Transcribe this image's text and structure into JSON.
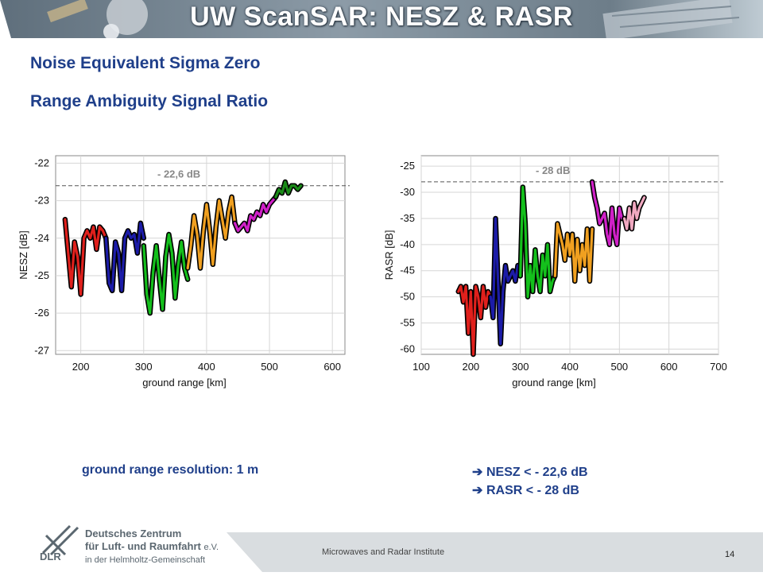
{
  "slide": {
    "title": "UW ScanSAR: NESZ & RASR",
    "headings": [
      "Noise Equivalent Sigma Zero",
      "Range Ambiguity Signal Ratio"
    ],
    "caption": "ground range resolution: 1 m",
    "bullets": [
      "NESZ < - 22,6 dB",
      "RASR < - 28 dB"
    ],
    "bullet_icon": "right-arrow-icon",
    "footer_institute": "Microwaves and Radar Institute",
    "page_number": "14",
    "logo": {
      "abbr": "DLR",
      "line1": "Deutsches Zentrum",
      "line2": "für Luft- und Raumfahrt",
      "line2_suffix": "e.V.",
      "line3": "in der Helmholtz-Gemeinschaft"
    },
    "colors": {
      "title_text": "#ffffff",
      "heading_text": "#1f3f8a",
      "banner": "#6b7c8a"
    }
  },
  "chart_data": [
    {
      "type": "line",
      "xlabel": "ground range [km]",
      "ylabel": "NESZ [dB]",
      "xlim": [
        160,
        620
      ],
      "ylim": [
        -27.1,
        -21.8
      ],
      "xticks": [
        200,
        300,
        400,
        500,
        600
      ],
      "yticks": [
        -22,
        -23,
        -24,
        -25,
        -26,
        -27
      ],
      "grid": true,
      "threshold": {
        "value": -22.6,
        "label": "- 22,6 dB"
      },
      "series": [
        {
          "color": "#e0201c",
          "x": [
            175,
            180,
            185,
            190,
            195,
            200,
            205,
            210,
            215,
            220,
            225,
            230,
            235,
            240
          ],
          "y": [
            -23.5,
            -24.4,
            -25.3,
            -24.1,
            -24.5,
            -25.5,
            -24.0,
            -23.8,
            -24.0,
            -23.7,
            -24.3,
            -23.7,
            -23.8,
            -24.0
          ]
        },
        {
          "color": "#1c1ca8",
          "x": [
            240,
            245,
            250,
            255,
            260,
            265,
            270,
            275,
            280,
            285,
            290,
            295,
            300
          ],
          "y": [
            -24.0,
            -25.2,
            -25.4,
            -24.1,
            -24.4,
            -25.4,
            -24.0,
            -23.8,
            -24.0,
            -23.9,
            -24.4,
            -23.6,
            -24.0
          ]
        },
        {
          "color": "#14c01c",
          "x": [
            300,
            305,
            310,
            315,
            320,
            325,
            330,
            335,
            340,
            345,
            350,
            355,
            360,
            365,
            370
          ],
          "y": [
            -24.2,
            -25.5,
            -26.0,
            -24.9,
            -24.2,
            -25.1,
            -25.9,
            -24.5,
            -23.9,
            -24.4,
            -25.6,
            -24.7,
            -24.1,
            -24.8,
            -25.1
          ]
        },
        {
          "color": "#f0a020",
          "x": [
            370,
            375,
            380,
            385,
            390,
            395,
            400,
            405,
            410,
            415,
            420,
            425,
            430,
            435,
            440,
            445
          ],
          "y": [
            -24.8,
            -24.2,
            -23.4,
            -23.9,
            -24.8,
            -23.8,
            -23.1,
            -23.8,
            -24.7,
            -23.7,
            -23.0,
            -23.5,
            -24.0,
            -23.3,
            -22.9,
            -23.6
          ]
        },
        {
          "color": "#d020c8",
          "x": [
            445,
            450,
            455,
            460,
            465,
            470,
            475,
            480,
            485,
            490,
            495,
            500,
            505,
            510
          ],
          "y": [
            -23.6,
            -23.8,
            -23.7,
            -23.6,
            -23.8,
            -23.4,
            -23.5,
            -23.3,
            -23.4,
            -23.1,
            -23.3,
            -23.1,
            -23.0,
            -22.9
          ]
        },
        {
          "color": "#1a8a18",
          "x": [
            510,
            515,
            520,
            525,
            530,
            535,
            540,
            545,
            550
          ],
          "y": [
            -22.9,
            -22.7,
            -22.8,
            -22.5,
            -22.8,
            -22.6,
            -22.6,
            -22.7,
            -22.6
          ]
        }
      ]
    },
    {
      "type": "line",
      "xlabel": "ground range [km]",
      "ylabel": "RASR [dB]",
      "xlim": [
        100,
        700
      ],
      "ylim": [
        -61,
        -23
      ],
      "xticks": [
        100,
        200,
        300,
        400,
        500,
        600,
        700
      ],
      "yticks": [
        -25,
        -30,
        -35,
        -40,
        -45,
        -50,
        -55,
        -60
      ],
      "grid": true,
      "threshold": {
        "value": -28,
        "label": "- 28 dB"
      },
      "series": [
        {
          "color": "#e0201c",
          "x": [
            175,
            180,
            185,
            190,
            195,
            200,
            205,
            210,
            215,
            220,
            225,
            230,
            235,
            240
          ],
          "y": [
            -49,
            -48,
            -51,
            -48,
            -57,
            -49,
            -61,
            -48,
            -50,
            -54,
            -48,
            -52,
            -49,
            -50
          ]
        },
        {
          "color": "#1c1ca8",
          "x": [
            240,
            245,
            250,
            255,
            260,
            265,
            270,
            275,
            280,
            285,
            290,
            295,
            300
          ],
          "y": [
            -50,
            -54,
            -35,
            -47,
            -59,
            -49,
            -44,
            -47,
            -46,
            -45,
            -47,
            -44,
            -46
          ]
        },
        {
          "color": "#14c01c",
          "x": [
            300,
            305,
            310,
            315,
            320,
            325,
            330,
            335,
            340,
            345,
            350,
            355,
            360,
            365,
            370
          ],
          "y": [
            -46,
            -29,
            -36,
            -50,
            -44,
            -49,
            -41,
            -46,
            -49,
            -42,
            -46,
            -40,
            -49,
            -47,
            -46
          ]
        },
        {
          "color": "#f0a020",
          "x": [
            370,
            375,
            380,
            385,
            390,
            395,
            400,
            405,
            410,
            415,
            420,
            425,
            430,
            435,
            440,
            445
          ],
          "y": [
            -46,
            -36,
            -38,
            -40,
            -43,
            -38,
            -42,
            -38,
            -47,
            -39,
            -45,
            -40,
            -44,
            -37,
            -47,
            -37
          ]
        },
        {
          "color": "#d020c8",
          "x": [
            445,
            450,
            455,
            460,
            465,
            470,
            475,
            480,
            485,
            490,
            495,
            500,
            505,
            510
          ],
          "y": [
            -28,
            -31,
            -33,
            -36,
            -35,
            -34,
            -38,
            -40,
            -33,
            -38,
            -40,
            -33,
            -35,
            -35
          ]
        },
        {
          "color": "#f0a8c0",
          "x": [
            510,
            515,
            520,
            525,
            530,
            535,
            540,
            545,
            550
          ],
          "y": [
            -35,
            -37,
            -33,
            -37,
            -32,
            -35,
            -33,
            -32,
            -31
          ]
        }
      ]
    }
  ]
}
